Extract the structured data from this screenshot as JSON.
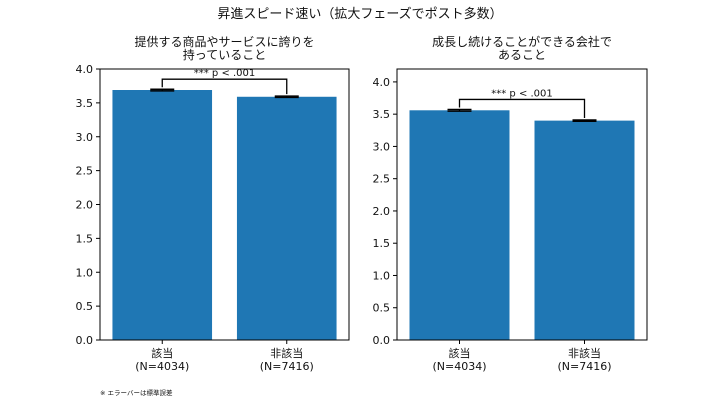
{
  "figure": {
    "title": "昇進スピード速い（拡大フェーズでポスト多数）",
    "footnote": "※ エラーバーは標準誤差"
  },
  "chart_data": [
    {
      "type": "bar",
      "title_lines": [
        "提供する商品やサービスに誇りを",
        "持っていること"
      ],
      "categories": [
        "該当\n(N=4034)",
        "非該当\n(N=7416)"
      ],
      "values": [
        3.69,
        3.59
      ],
      "errors": [
        0.012,
        0.009
      ],
      "ylim": [
        0,
        4.0
      ],
      "yticks": [
        "0.0",
        "0.5",
        "1.0",
        "1.5",
        "2.0",
        "2.5",
        "3.0",
        "3.5",
        "4.0"
      ],
      "annotation": "*** p < .001",
      "bar_color": "#1f77b4",
      "grid": false
    },
    {
      "type": "bar",
      "title_lines": [
        "成長し続けることができる会社で",
        "あること"
      ],
      "categories": [
        "該当\n(N=4034)",
        "非該当\n(N=7416)"
      ],
      "values": [
        3.56,
        3.4
      ],
      "errors": [
        0.013,
        0.01
      ],
      "ylim": [
        0,
        4.2
      ],
      "yticks": [
        "0.0",
        "0.5",
        "1.0",
        "1.5",
        "2.0",
        "2.5",
        "3.0",
        "3.5",
        "4.0"
      ],
      "annotation": "*** p < .001",
      "bar_color": "#1f77b4",
      "grid": false
    }
  ]
}
